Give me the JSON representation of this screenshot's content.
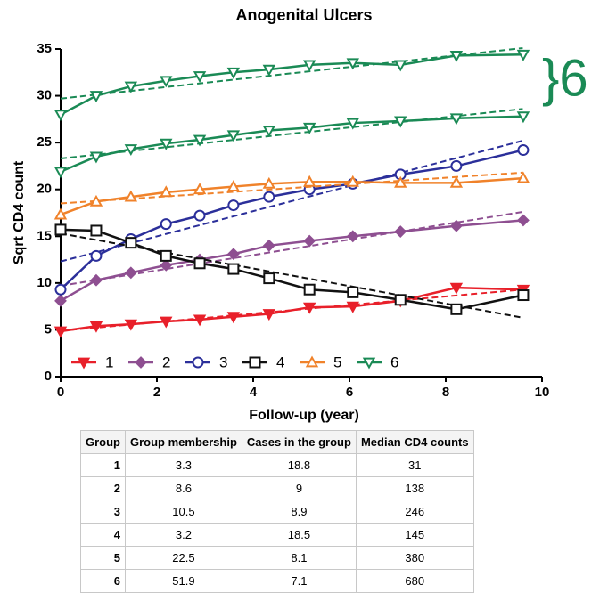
{
  "chart_data": {
    "type": "line",
    "title": "Anogenital Ulcers",
    "xlabel": "Follow-up (year)",
    "ylabel": "Sqrt CD4 count",
    "annotation": "}6",
    "annotation_color": "#1a8a55",
    "x": [
      0,
      0.74,
      1.46,
      2.19,
      2.89,
      3.59,
      4.33,
      5.17,
      6.07,
      7.06,
      8.22,
      9.61
    ],
    "xlim": [
      0,
      10
    ],
    "xticks": [
      0,
      2,
      4,
      6,
      8,
      10
    ],
    "ylim": [
      0,
      35
    ],
    "yticks": [
      0,
      5,
      10,
      15,
      20,
      25,
      30,
      35
    ],
    "trend_x": [
      0,
      9.6
    ],
    "series": [
      {
        "name": "1",
        "color": "#e8202a",
        "marker": "tri-down-filled",
        "values": [
          4.85,
          5.4,
          5.6,
          5.9,
          6.1,
          6.4,
          6.7,
          7.4,
          7.5,
          8.1,
          9.5,
          9.3
        ],
        "trend": [
          4.9,
          9.3
        ]
      },
      {
        "name": "2",
        "color": "#8e4f91",
        "marker": "diamond",
        "values": [
          8.1,
          10.3,
          11.1,
          11.9,
          12.5,
          13.1,
          14.0,
          14.5,
          15.0,
          15.5,
          16.1,
          16.7
        ],
        "trend": [
          9.7,
          17.6
        ]
      },
      {
        "name": "3",
        "color": "#2b2f9a",
        "marker": "circle",
        "values": [
          9.3,
          12.9,
          14.7,
          16.3,
          17.2,
          18.3,
          19.2,
          20.0,
          20.6,
          21.6,
          22.5,
          24.2
        ],
        "trend": [
          12.3,
          25.2
        ]
      },
      {
        "name": "4",
        "color": "#111111",
        "marker": "square",
        "values": [
          15.7,
          15.6,
          14.3,
          12.9,
          12.1,
          11.5,
          10.5,
          9.3,
          9.0,
          8.2,
          7.2,
          8.7
        ],
        "trend": [
          15.3,
          6.3
        ]
      },
      {
        "name": "5",
        "color": "#f0822a",
        "marker": "tri-up",
        "values": [
          17.3,
          18.7,
          19.2,
          19.7,
          20.0,
          20.3,
          20.6,
          20.8,
          20.8,
          20.7,
          20.7,
          21.2
        ],
        "trend": [
          18.5,
          21.8
        ]
      },
      {
        "name": "6",
        "color": "#1a8a55",
        "marker": "tri-down",
        "values": [
          28.0,
          30.0,
          31.0,
          31.6,
          32.1,
          32.5,
          32.8,
          33.3,
          33.5,
          33.3,
          34.3,
          34.4
        ],
        "trend": [
          29.7,
          35.1
        ]
      },
      {
        "color": "#1a8a55",
        "marker": "tri-down",
        "values": [
          21.9,
          23.5,
          24.3,
          24.9,
          25.3,
          25.8,
          26.3,
          26.6,
          27.1,
          27.3,
          27.6,
          27.8
        ],
        "trend": [
          23.3,
          28.6
        ]
      }
    ]
  },
  "table": {
    "header": [
      "Group",
      "Group membership",
      "Cases in the group",
      "Median CD4 counts"
    ],
    "rows": [
      [
        "1",
        "3.3",
        "18.8",
        "31"
      ],
      [
        "2",
        "8.6",
        "9",
        "138"
      ],
      [
        "3",
        "10.5",
        "8.9",
        "246"
      ],
      [
        "4",
        "3.2",
        "18.5",
        "145"
      ],
      [
        "5",
        "22.5",
        "8.1",
        "380"
      ],
      [
        "6",
        "51.9",
        "7.1",
        "680"
      ]
    ]
  }
}
